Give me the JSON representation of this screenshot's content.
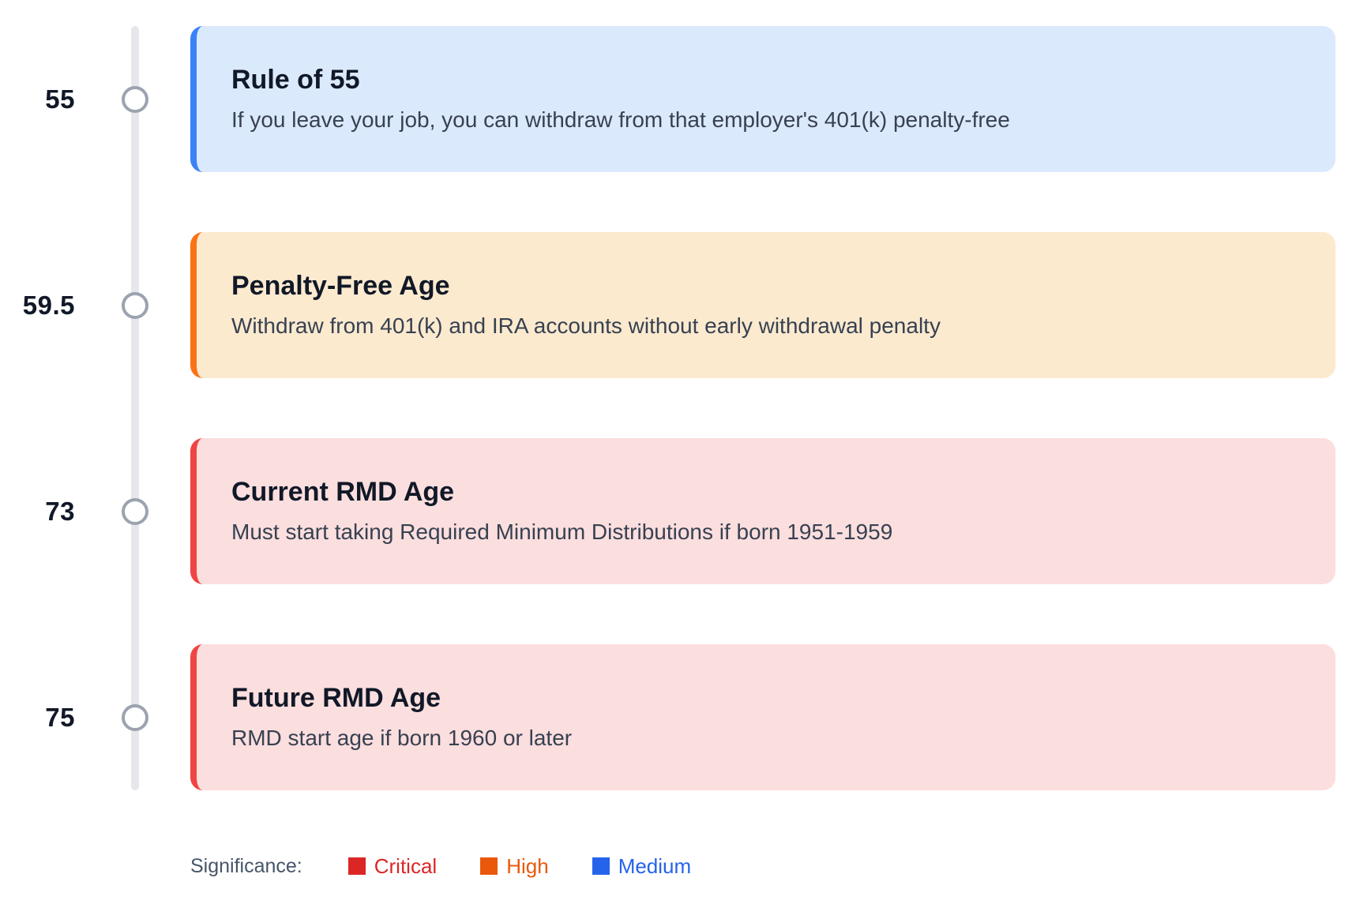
{
  "timeline": {
    "events": [
      {
        "age": "55",
        "title": "Rule of 55",
        "description": "If you leave your job, you can withdraw from that employer's 401(k) penalty-free",
        "significance": "Medium",
        "accent": "#3b82f6",
        "bg": "#dbe9fd"
      },
      {
        "age": "59.5",
        "title": "Penalty-Free Age",
        "description": "Withdraw from 401(k) and IRA accounts without early withdrawal penalty",
        "significance": "High",
        "accent": "#f97316",
        "bg": "#fceacf"
      },
      {
        "age": "73",
        "title": "Current RMD Age",
        "description": "Must start taking Required Minimum Distributions if born 1951-1959",
        "significance": "Critical",
        "accent": "#ef4444",
        "bg": "#fbdede"
      },
      {
        "age": "75",
        "title": "Future RMD Age",
        "description": "RMD start age if born 1960 or later",
        "significance": "Critical",
        "accent": "#ef4444",
        "bg": "#fbdede"
      }
    ]
  },
  "legend": {
    "label": "Significance:",
    "items": [
      {
        "label": "Critical",
        "color": "#dc2626"
      },
      {
        "label": "High",
        "color": "#ea580c"
      },
      {
        "label": "Medium",
        "color": "#2563eb"
      }
    ]
  },
  "palette": {
    "axis_line": "#e5e7eb",
    "node_border": "#9ca3af",
    "title_text": "#111827",
    "description_text": "#374151"
  }
}
